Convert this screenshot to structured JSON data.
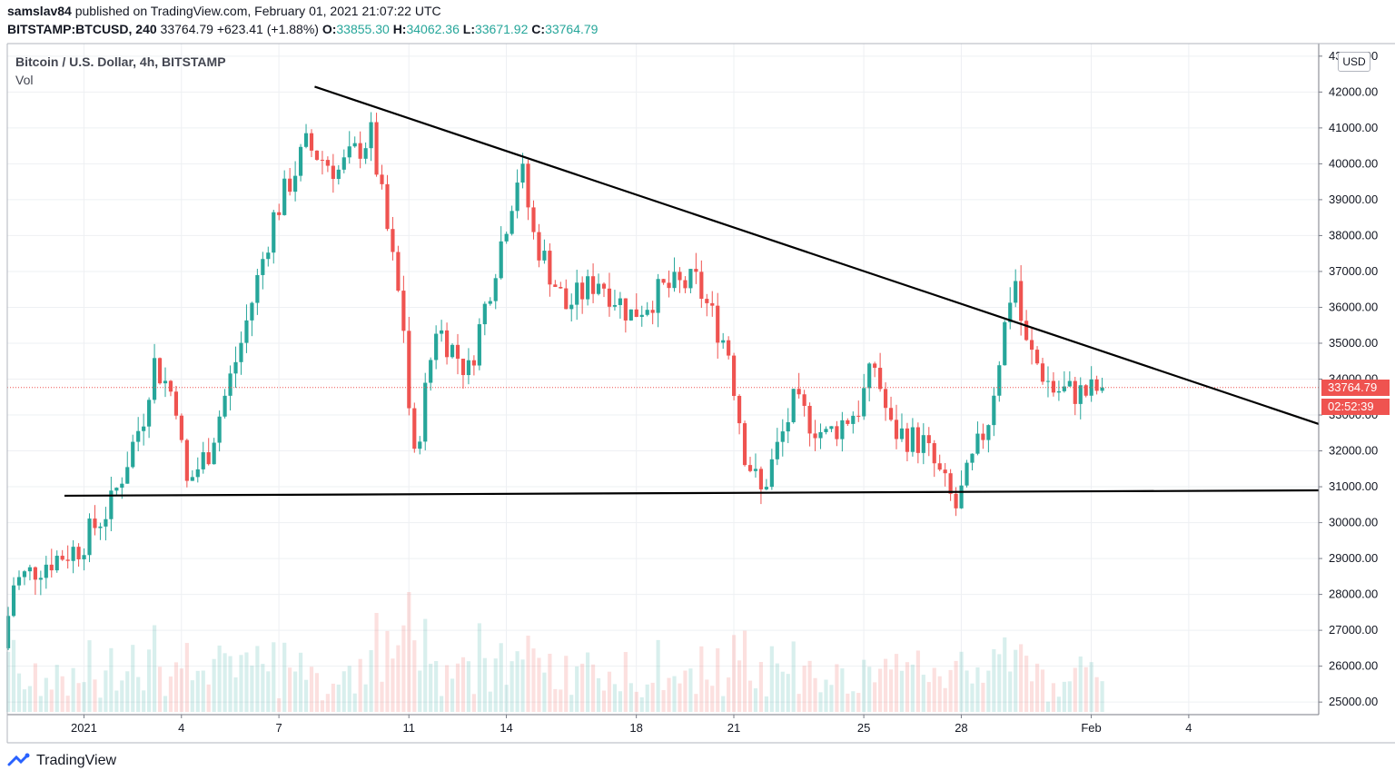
{
  "header": {
    "user": "samslav84",
    "published_text": "published on TradingView.com, February 01, 2021 21:07:22 UTC",
    "symbol": "BITSTAMP:BTCUSD, 240",
    "last": "33764.79",
    "change": "+623.41 (+1.88%)",
    "o_label": "O:",
    "o_value": "33855.30",
    "h_label": "H:",
    "h_value": "34062.36",
    "l_label": "L:",
    "l_value": "33671.92",
    "c_label": "C:",
    "c_value": "33764.79"
  },
  "legend": {
    "title": "Bitcoin / U.S. Dollar, 4h, BITSTAMP",
    "vol": "Vol"
  },
  "currency": "USD",
  "price_label": "33764.79",
  "countdown_label": "02:52:39",
  "footer": {
    "brand": "TradingView",
    "logo_icon": "tradingview-logo-icon"
  },
  "colors": {
    "up": "#26a69a",
    "down": "#ef5350",
    "grid": "#eef0f3",
    "trend": "#000000"
  },
  "chart_data": {
    "type": "candlestick",
    "timeframe": "4h",
    "y_ticks": [
      25000,
      26000,
      27000,
      28000,
      29000,
      30000,
      31000,
      32000,
      33000,
      34000,
      35000,
      36000,
      37000,
      38000,
      39000,
      40000,
      41000,
      42000,
      43000
    ],
    "y_tick_labels": [
      "25000.00",
      "26000.00",
      "27000.00",
      "28000.00",
      "29000.00",
      "30000.00",
      "31000.00",
      "32000.00",
      "33000.00",
      "34000.00",
      "35000.00",
      "36000.00",
      "37000.00",
      "38000.00",
      "39000.00",
      "40000.00",
      "41000.00",
      "42000.00",
      "43000.00"
    ],
    "x_ticks": [
      {
        "label": "2021",
        "day": 1
      },
      {
        "label": "4",
        "day": 4
      },
      {
        "label": "7",
        "day": 7
      },
      {
        "label": "11",
        "day": 11
      },
      {
        "label": "14",
        "day": 14
      },
      {
        "label": "18",
        "day": 18
      },
      {
        "label": "21",
        "day": 21
      },
      {
        "label": "25",
        "day": 25
      },
      {
        "label": "28",
        "day": 28
      },
      {
        "label": "Feb",
        "day": 32
      },
      {
        "label": "4",
        "day": 35
      }
    ],
    "date_range_days": [
      -1.36,
      39.0
    ],
    "y_range": [
      24650,
      43350
    ],
    "last_price": 33764.79,
    "daily_closes": [
      [
        -1.33,
        26500
      ],
      [
        -1,
        28300
      ],
      [
        0,
        28900
      ],
      [
        1,
        29300
      ],
      [
        2,
        30500
      ],
      [
        3,
        33000
      ],
      [
        3.3,
        34500
      ],
      [
        4,
        33400
      ],
      [
        4.3,
        31000
      ],
      [
        5,
        32000
      ],
      [
        6,
        35000
      ],
      [
        7,
        38500
      ],
      [
        8,
        40500
      ],
      [
        9,
        39800
      ],
      [
        10,
        40800
      ],
      [
        11,
        35500
      ],
      [
        11.3,
        31500
      ],
      [
        12,
        35500
      ],
      [
        13,
        34200
      ],
      [
        14,
        37800
      ],
      [
        14.6,
        40000
      ],
      [
        15,
        38000
      ],
      [
        16,
        36000
      ],
      [
        17,
        36800
      ],
      [
        18,
        35800
      ],
      [
        19,
        36500
      ],
      [
        20,
        36700
      ],
      [
        21,
        34800
      ],
      [
        21.5,
        32000
      ],
      [
        22,
        30800
      ],
      [
        23,
        33300
      ],
      [
        24,
        32400
      ],
      [
        25,
        33200
      ],
      [
        25.5,
        34400
      ],
      [
        26,
        32600
      ],
      [
        27,
        32200
      ],
      [
        28,
        30400
      ],
      [
        29,
        32900
      ],
      [
        29.8,
        37000
      ],
      [
        30.1,
        35000
      ],
      [
        31,
        33700
      ],
      [
        32,
        33600
      ],
      [
        32.5,
        33764.79
      ]
    ],
    "trendlines": [
      {
        "name": "",
        "points": [
          [
            8.1,
            42150
          ],
          [
            39.0,
            32750
          ]
        ]
      },
      {
        "name": "",
        "points": [
          [
            0.4,
            30750
          ],
          [
            39.0,
            30900
          ]
        ]
      }
    ]
  }
}
